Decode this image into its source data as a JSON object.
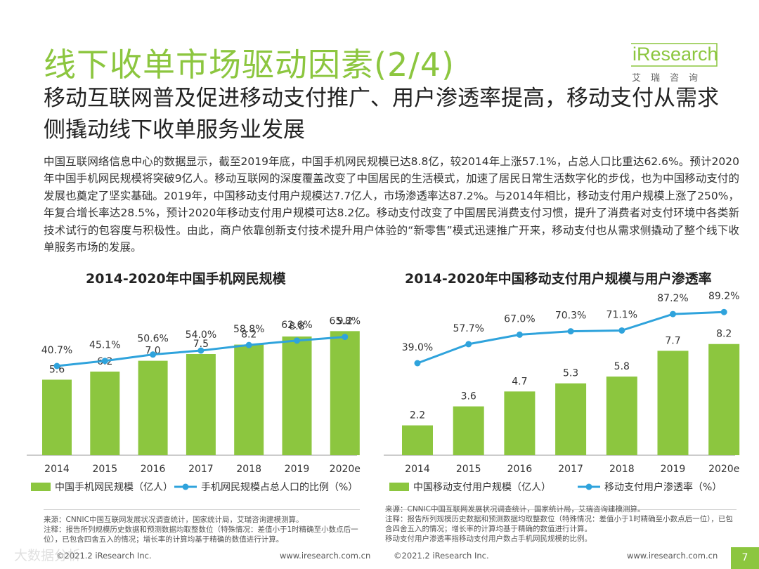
{
  "header": {
    "title": "线下收单市场驱动因素(2/4)",
    "subtitle": "移动互联网普及促进移动支付推广、用户渗透率提高，移动支付从需求侧撬动线下收单服务业发展"
  },
  "logo": {
    "name": "iResearch",
    "cn": "艾瑞咨询"
  },
  "body": "中国互联网络信息中心的数据显示，截至2019年底，中国手机网民规模已达8.8亿，较2014年上涨57.1%，占总人口比重达62.6%。预计2020年中国手机网民规模将突破9亿人。移动互联网的深度覆盖改变了中国居民的生活模式，加速了居民日常生活数字化的步伐，也为中国移动支付的发展也奠定了坚实基础。2019年，中国移动支付用户规模达7.7亿人，市场渗透率达87.2%。与2014年相比，移动支付用户规模上涨了250%，年复合增长率达28.5%，预计2020年移动支付用户规模可达8.2亿。移动支付改变了中国居民消费支付习惯，提升了消费者对支付环境中各类新技术试行的包容度与积极性。由此，商户依靠创新支付技术提升用户体验的“新零售”模式迅速推广开来，移动支付也从需求侧撬动了整个线下收单服务市场的发展。",
  "colors": {
    "accent": "#8cc63f",
    "line": "#2fa3dc"
  },
  "chart_data": [
    {
      "type": "bar",
      "title": "2014-2020年中国手机网民规模",
      "categories": [
        "2014",
        "2015",
        "2016",
        "2017",
        "2018",
        "2019",
        "2020e"
      ],
      "series": [
        {
          "name": "中国手机网民规模（亿人）",
          "kind": "bar",
          "values": [
            5.6,
            6.2,
            7.0,
            7.5,
            8.2,
            8.8,
            9.2
          ],
          "labels": [
            "5.6",
            "6.2",
            "7.0",
            "7.5",
            "8.2",
            "8.8",
            "9.2"
          ]
        },
        {
          "name": "手机网民规模占总人口的比例（%）",
          "kind": "line",
          "values": [
            40.7,
            45.1,
            50.6,
            54.0,
            58.8,
            62.6,
            65.8
          ],
          "labels": [
            "40.7%",
            "45.1%",
            "50.6%",
            "54.0%",
            "58.8%",
            "62.6%",
            "65.8%"
          ]
        }
      ],
      "footnotes": [
        "来源：CNNIC中国互联网发展状况调查统计，国家统计局，艾瑞咨询建模测算。",
        "注释：报告所列规模历史数据和预测数据均取整数位（特殊情况：差值小于1时精确至小数点后一位），已包含四舍五入的情况；增长率的计算均基于精确的数值进行计算。"
      ],
      "footer_left": "©2021.2 iResearch Inc.",
      "footer_right": "www.iresearch.com.cn"
    },
    {
      "type": "bar",
      "title": "2014-2020年中国移动支付用户规模与用户渗透率",
      "categories": [
        "2014",
        "2015",
        "2016",
        "2017",
        "2018",
        "2019",
        "2020e"
      ],
      "series": [
        {
          "name": "中国移动支付用户规模（亿人）",
          "kind": "bar",
          "values": [
            2.2,
            3.6,
            4.7,
            5.3,
            5.8,
            7.7,
            8.2
          ],
          "labels": [
            "2.2",
            "3.6",
            "4.7",
            "5.3",
            "5.8",
            "7.7",
            "8.2"
          ]
        },
        {
          "name": "移动支付用户渗透率（%）",
          "kind": "line",
          "values": [
            39.0,
            57.7,
            67.0,
            70.3,
            71.1,
            87.2,
            89.2
          ],
          "labels": [
            "39.0%",
            "57.7%",
            "67.0%",
            "70.3%",
            "71.1%",
            "87.2%",
            "89.2%"
          ]
        }
      ],
      "footnotes": [
        "来源：CNNIC中国互联网发展状况调查统计，国家统计局，艾瑞咨询建模测算。",
        "注释：报告所列规模历史数据和预测数据均取整数位（特殊情况：差值小于1时精确至小数点后一位），已包含四舍五入的情况；增长率的计算均基于精确的数值进行计算。",
        "移动支付用户渗透率指移动支付用户数占手机网民规模的比例。"
      ],
      "footer_left": "©2021.2 iResearch Inc.",
      "footer_right": "www.iresearch.com.cn"
    }
  ],
  "page_number": "7",
  "watermark": "大数据分析"
}
